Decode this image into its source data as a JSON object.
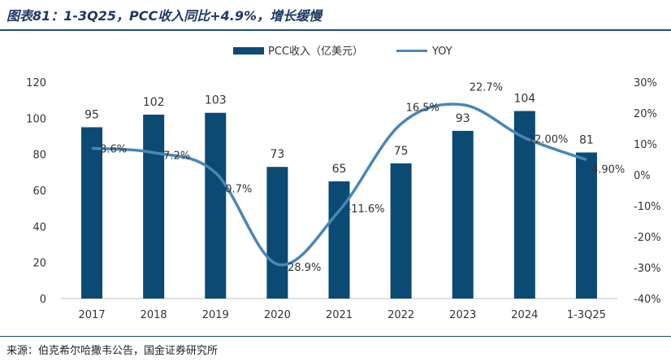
{
  "figure": {
    "title": "图表81：1-3Q25，PCC收入同比+4.9%，增长缓慢",
    "source": "来源：伯克希尔哈撒韦公告，国金证券研究所"
  },
  "colors": {
    "bar": "#0b4a72",
    "line": "#4a86b8",
    "rule": "#1f4e79",
    "title": "#1f3864"
  },
  "chart_data": {
    "type": "bar",
    "categories": [
      "2017",
      "2018",
      "2019",
      "2020",
      "2021",
      "2022",
      "2023",
      "2024",
      "1-3Q25"
    ],
    "series": [
      {
        "name": "PCC收入（亿美元）",
        "type": "bar",
        "axis": "left",
        "values": [
          95,
          102,
          103,
          73,
          65,
          75,
          93,
          104,
          81
        ],
        "labels": [
          "95",
          "102",
          "103",
          "73",
          "65",
          "75",
          "93",
          "104",
          "81"
        ]
      },
      {
        "name": "YOY",
        "type": "line",
        "axis": "right",
        "smooth": true,
        "values": [
          8.6,
          7.2,
          0.7,
          -28.9,
          -11.6,
          16.5,
          22.7,
          12.0,
          4.9
        ],
        "labels": [
          "8.6%",
          "7.2%",
          "0.7%",
          "-28.9%",
          "-11.6%",
          "16.5%",
          "22.7%",
          "12.00%",
          "4.90%"
        ]
      }
    ],
    "y_left": {
      "min": 0,
      "max": 120,
      "ticks": [
        "0",
        "20",
        "40",
        "60",
        "80",
        "100",
        "120"
      ]
    },
    "y_right": {
      "min": -40,
      "max": 30,
      "ticks": [
        "-40%",
        "-30%",
        "-20%",
        "-10%",
        "0%",
        "10%",
        "20%",
        "30%"
      ]
    },
    "grid": false,
    "legend_position": "top-center"
  }
}
